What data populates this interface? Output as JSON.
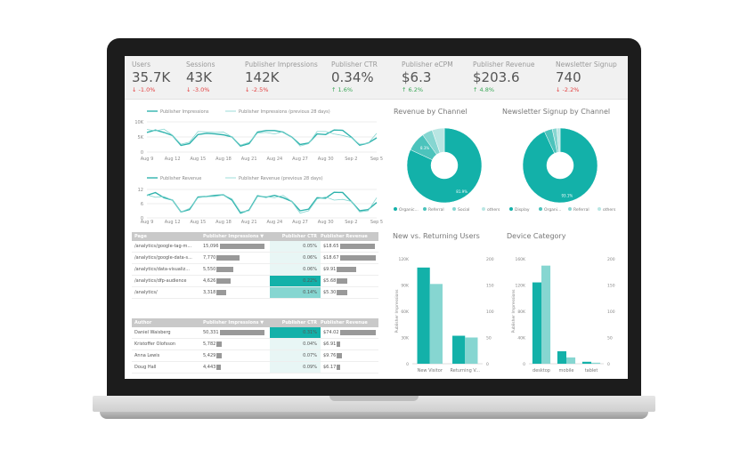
{
  "kpis": [
    {
      "label": "Users",
      "value": "35.7K",
      "delta": "-1.0%",
      "dir": "down"
    },
    {
      "label": "Sessions",
      "value": "43K",
      "delta": "-3.0%",
      "dir": "down"
    },
    {
      "label": "Publisher Impressions",
      "value": "142K",
      "delta": "-2.5%",
      "dir": "down"
    },
    {
      "label": "Publisher CTR",
      "value": "0.34%",
      "delta": "1.6%",
      "dir": "up"
    },
    {
      "label": "Publisher eCPM",
      "value": "$6.3",
      "delta": "6.2%",
      "dir": "up"
    },
    {
      "label": "Publisher Revenue",
      "value": "$203.6",
      "delta": "4.8%",
      "dir": "up"
    },
    {
      "label": "Newsletter Signup",
      "value": "740",
      "delta": "-2.2%",
      "dir": "down"
    }
  ],
  "colors": {
    "primary": "#13b1a9",
    "light": "#86d6d1",
    "lighter": "#b9e6e3",
    "up": "#3aa757",
    "down": "#e34040"
  },
  "tables": [
    {
      "headers": [
        "Page",
        "Publisher Impressions ▼",
        "Publisher CTR",
        "Publisher Revenue"
      ],
      "rows": [
        [
          "/analytics/google-tag-m...",
          "15,096",
          "0.05%",
          "$18.65"
        ],
        [
          "/analytics/google-data-s...",
          "7,770",
          "0.06%",
          "$18.67"
        ],
        [
          "/analytics/data-visualiz...",
          "5,550",
          "0.06%",
          "$9.91"
        ],
        [
          "/analytics/dfp-audience",
          "4,626",
          "0.22%",
          "$5.68"
        ],
        [
          "/analytics/",
          "3,318",
          "0.14%",
          "$5.30"
        ]
      ],
      "impr": [
        15096,
        7770,
        5550,
        4626,
        3318
      ],
      "rev": [
        18.65,
        18.67,
        9.91,
        5.68,
        5.3
      ],
      "ctr": [
        0.05,
        0.06,
        0.06,
        0.22,
        0.14
      ]
    },
    {
      "headers": [
        "Author",
        "Publisher Impressions ▼",
        "Publisher CTR",
        "Publisher Revenue"
      ],
      "rows": [
        [
          "Daniel Waisberg",
          "50,331",
          "0.31%",
          "$74.02"
        ],
        [
          "Kristoffer Olofsson",
          "5,782",
          "0.04%",
          "$6.91"
        ],
        [
          "Anna Lewis",
          "5,429",
          "0.07%",
          "$9.76"
        ],
        [
          "Doug Hall",
          "4,443",
          "0.09%",
          "$6.17"
        ]
      ],
      "impr": [
        50331,
        5782,
        5429,
        4443
      ],
      "rev": [
        74.02,
        6.91,
        9.76,
        6.17
      ],
      "ctr": [
        0.31,
        0.04,
        0.07,
        0.09
      ]
    }
  ],
  "chart_data": [
    {
      "type": "line",
      "x_ticks": [
        "Aug 9",
        "Aug 12",
        "Aug 15",
        "Aug 18",
        "Aug 21",
        "Aug 24",
        "Aug 27",
        "Aug 30",
        "Sep 2",
        "Sep 5"
      ],
      "y_ticks": [
        "10K",
        "5K",
        "0"
      ],
      "ylim": [
        0,
        10000
      ],
      "legend": "top",
      "series": [
        {
          "name": "Publisher Impressions",
          "values": [
            6500,
            7300,
            6500,
            5500,
            2200,
            2800,
            5800,
            6200,
            6000,
            5700,
            5000,
            2000,
            2800,
            6600,
            7100,
            7100,
            6600,
            5000,
            2500,
            3000,
            6000,
            5800,
            7300,
            7200,
            5000,
            2300,
            3000,
            4700
          ]
        },
        {
          "name": "Publisher Impressions (previous 28 days)",
          "values": [
            7500,
            7000,
            7600,
            5600,
            2600,
            3300,
            6800,
            6700,
            6500,
            6600,
            5000,
            2300,
            3200,
            6300,
            6500,
            6000,
            6800,
            5000,
            2000,
            2800,
            6800,
            6800,
            6000,
            5500,
            4800,
            2600,
            2900,
            6200
          ]
        }
      ]
    },
    {
      "type": "line",
      "x_ticks": [
        "Aug 9",
        "Aug 12",
        "Aug 15",
        "Aug 18",
        "Aug 21",
        "Aug 24",
        "Aug 27",
        "Aug 30",
        "Sep 2",
        "Sep 5"
      ],
      "y_ticks": [
        "12",
        "6",
        "0"
      ],
      "ylim": [
        0,
        12
      ],
      "legend": "top",
      "series": [
        {
          "name": "Publisher Revenue",
          "values": [
            9.5,
            10.7,
            8.5,
            7.5,
            2.5,
            3.5,
            8.8,
            9,
            9.5,
            9.7,
            7.5,
            2,
            3.3,
            9.3,
            8.7,
            9.5,
            8.5,
            7,
            3,
            3.7,
            8.5,
            8.3,
            10.8,
            10.7,
            7,
            3,
            3.5,
            6.5
          ]
        },
        {
          "name": "Publisher Revenue (previous 28 days)",
          "values": [
            9.7,
            8.7,
            9,
            7.5,
            2.5,
            4,
            8.5,
            9,
            9,
            9.7,
            8,
            2.5,
            3,
            9,
            9,
            8.5,
            9.5,
            7,
            2,
            3,
            8,
            8.8,
            7.5,
            7.8,
            7,
            2.5,
            3,
            8.5
          ]
        }
      ]
    },
    {
      "type": "pie",
      "title": "Revenue by Channel",
      "categories": [
        "Organic...",
        "Referral",
        "Social",
        "others"
      ],
      "values": [
        81.9,
        8.3,
        4.5,
        5.3
      ],
      "labels": [
        "81.9%",
        "8.3%",
        "",
        ""
      ]
    },
    {
      "type": "pie",
      "title": "Newsletter Signup by Channel",
      "categories": [
        "Display",
        "Organi...",
        "Referral",
        "others"
      ],
      "values": [
        93.1,
        3.5,
        2.0,
        1.4
      ],
      "labels": [
        "93.1%",
        "",
        "",
        ""
      ]
    },
    {
      "type": "bar",
      "title": "New vs. Returning Users",
      "categories": [
        "New Visitor",
        "Returning V..."
      ],
      "ylabel": "Publisher Impressions",
      "y_ticks": [
        "120K",
        "90K",
        "60K",
        "30K",
        "0"
      ],
      "ylim": [
        0,
        120000
      ],
      "y2_ticks": [
        "200",
        "150",
        "100",
        "50",
        "0"
      ],
      "y2lim": [
        0,
        200
      ],
      "series": [
        {
          "values": [
            110000,
            32000
          ]
        },
        {
          "values": [
            152,
            50
          ]
        }
      ]
    },
    {
      "type": "bar",
      "title": "Device Category",
      "categories": [
        "desktop",
        "mobile",
        "tablet"
      ],
      "ylabel": "Publisher Impressions",
      "y_ticks": [
        "160K",
        "120K",
        "80K",
        "40K",
        "0"
      ],
      "ylim": [
        0,
        160000
      ],
      "y2_ticks": [
        "200",
        "150",
        "100",
        "50",
        "0"
      ],
      "y2lim": [
        0,
        200
      ],
      "series": [
        {
          "values": [
            124000,
            19000,
            3000
          ]
        },
        {
          "values": [
            187,
            12,
            2
          ]
        }
      ]
    }
  ]
}
